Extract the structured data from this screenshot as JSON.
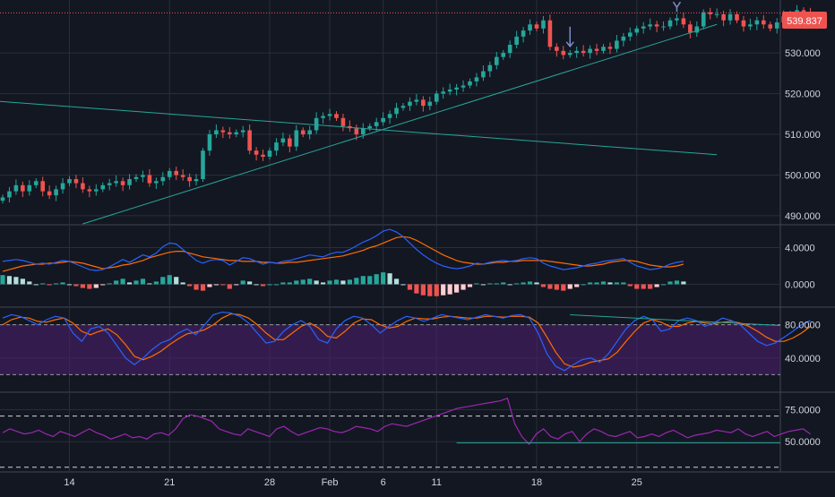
{
  "colors": {
    "background": "#131722",
    "grid": "#2a2e39",
    "up": "#26a69a",
    "down": "#ef5350",
    "axis_text": "#d1d4dc",
    "macd_line": "#2962ff",
    "signal_line": "#ff6d00",
    "stoch_k": "#2962ff",
    "stoch_d": "#ff6d00",
    "rsi_line": "#9c27b0",
    "trendline": "#26a69a",
    "price_tag": "#ef5350",
    "stoch_band": "#4a1f6b",
    "arrow": "#7e8cc4"
  },
  "chart_data": [
    {
      "type": "candlestick",
      "panel": "price",
      "last_price_label": "539.837",
      "last_price": 539.837,
      "ylim": [
        488,
        543
      ],
      "y_ticks": [
        "490.000",
        "500.000",
        "510.000",
        "520.000",
        "530.000"
      ],
      "y_tick_values": [
        490,
        500,
        510,
        520,
        530
      ],
      "closes": [
        494.5,
        496,
        497.5,
        496,
        497.5,
        498.5,
        496,
        495,
        496.5,
        498,
        499,
        498,
        496.5,
        496,
        496.5,
        497.5,
        498,
        498.5,
        497.5,
        499,
        499.5,
        500,
        498,
        498.5,
        499.5,
        501,
        500,
        499.5,
        498.5,
        499,
        506,
        510,
        511,
        510.5,
        510,
        510.5,
        511,
        506,
        505,
        504.5,
        506,
        508,
        509,
        507,
        511,
        510,
        511,
        514,
        514.5,
        515,
        514,
        512,
        511.5,
        510,
        511.5,
        512,
        513,
        514,
        515,
        516.5,
        517,
        518,
        518.5,
        517,
        518,
        520,
        520.5,
        521,
        521.5,
        522,
        523,
        524,
        525.5,
        527,
        529,
        530,
        532,
        534,
        535.5,
        537,
        536,
        538,
        531.5,
        530.5,
        529.5,
        530,
        530.5,
        530,
        531,
        530.5,
        531.5,
        531,
        533,
        534,
        535,
        536,
        536.5,
        537,
        536.5,
        536.5,
        538,
        538.5,
        537,
        535,
        536.5,
        540,
        539.5,
        539.5,
        538,
        539.5,
        538,
        536.5,
        537,
        538,
        537,
        536,
        537.5,
        539,
        539.5,
        540.5,
        540,
        539.837
      ],
      "x_tick_labels": [
        "14",
        "21",
        "28",
        "Feb",
        "6",
        "11",
        "18",
        "25"
      ],
      "x_tick_indices": [
        10,
        25,
        40,
        49,
        57,
        65,
        80,
        95
      ],
      "trendlines": [
        {
          "x1": -12,
          "y1": 519.5,
          "x2": 107,
          "y2": 505
        },
        {
          "x1": 12,
          "y1": 488,
          "x2": 107,
          "y2": 537
        }
      ],
      "arrows": [
        {
          "index": 85,
          "style": "down"
        },
        {
          "index": 101,
          "style": "y"
        }
      ]
    },
    {
      "type": "macd",
      "panel": "macd",
      "ylim": [
        -2.4,
        6.4
      ],
      "y_ticks": [
        "4.0000",
        "0.0000"
      ],
      "y_tick_values": [
        4.0,
        0.0
      ],
      "macd": [
        2.5,
        2.6,
        2.7,
        2.6,
        2.4,
        2.2,
        2.3,
        2.2,
        2.4,
        2.6,
        2.5,
        2.2,
        1.9,
        1.6,
        1.5,
        1.6,
        1.9,
        2.3,
        2.7,
        2.4,
        2.8,
        3.2,
        3.0,
        3.4,
        4.1,
        4.5,
        4.4,
        3.8,
        3.2,
        2.6,
        2.3,
        2.6,
        2.7,
        2.6,
        2.1,
        2.5,
        2.9,
        2.8,
        2.5,
        2.2,
        2.4,
        2.3,
        2.5,
        2.6,
        2.8,
        3.0,
        3.2,
        3.1,
        3.0,
        3.3,
        3.5,
        3.5,
        3.8,
        4.2,
        4.6,
        4.9,
        5.3,
        5.8,
        6.0,
        5.7,
        5.2,
        4.5,
        3.8,
        3.2,
        2.7,
        2.3,
        2.0,
        1.8,
        1.7,
        1.8,
        2.0,
        2.3,
        2.2,
        2.4,
        2.5,
        2.6,
        2.5,
        2.6,
        2.8,
        2.9,
        2.8,
        2.3,
        2.0,
        1.8,
        1.6,
        1.7,
        1.8,
        2.0,
        2.2,
        2.3,
        2.5,
        2.6,
        2.7,
        2.8,
        2.4,
        2.0,
        1.8,
        1.6,
        1.7,
        1.9,
        2.2,
        2.4,
        2.5
      ],
      "signal": [
        1.4,
        1.6,
        1.8,
        2.0,
        2.1,
        2.2,
        2.2,
        2.3,
        2.3,
        2.4,
        2.5,
        2.4,
        2.3,
        2.1,
        1.9,
        1.7,
        1.8,
        1.9,
        2.1,
        2.2,
        2.4,
        2.6,
        2.9,
        3.1,
        3.3,
        3.5,
        3.6,
        3.6,
        3.4,
        3.2,
        3.0,
        2.9,
        2.8,
        2.7,
        2.6,
        2.6,
        2.5,
        2.5,
        2.5,
        2.4,
        2.4,
        2.3,
        2.3,
        2.4,
        2.4,
        2.5,
        2.6,
        2.7,
        2.8,
        2.9,
        3.0,
        3.1,
        3.3,
        3.5,
        3.7,
        4.0,
        4.2,
        4.5,
        4.8,
        5.1,
        5.2,
        5.1,
        4.8,
        4.4,
        4.0,
        3.6,
        3.2,
        2.9,
        2.6,
        2.4,
        2.3,
        2.2,
        2.2,
        2.3,
        2.4,
        2.4,
        2.5,
        2.5,
        2.6,
        2.6,
        2.6,
        2.6,
        2.5,
        2.4,
        2.3,
        2.2,
        2.1,
        2.0,
        2.0,
        2.1,
        2.2,
        2.4,
        2.5,
        2.6,
        2.6,
        2.5,
        2.3,
        2.1,
        2.0,
        1.9,
        1.9,
        2.0,
        2.2
      ],
      "histogram": [
        1.0,
        0.9,
        0.8,
        0.6,
        0.3,
        0.0,
        0.1,
        -0.1,
        0.1,
        0.2,
        0.0,
        -0.2,
        -0.4,
        -0.5,
        -0.4,
        -0.1,
        0.1,
        0.4,
        0.6,
        0.2,
        0.4,
        0.6,
        0.1,
        0.3,
        0.8,
        1.0,
        0.8,
        0.2,
        -0.2,
        -0.6,
        -0.7,
        -0.3,
        -0.1,
        -0.1,
        -0.5,
        -0.1,
        0.4,
        0.3,
        0.0,
        -0.2,
        0.0,
        0.0,
        0.2,
        0.2,
        0.4,
        0.5,
        0.6,
        0.4,
        0.2,
        0.4,
        0.5,
        0.4,
        0.5,
        0.7,
        0.9,
        0.9,
        1.1,
        1.3,
        1.2,
        0.6,
        0.0,
        -0.6,
        -1.0,
        -1.2,
        -1.3,
        -1.3,
        -1.2,
        -1.1,
        -0.9,
        -0.6,
        -0.3,
        0.1,
        0.0,
        0.1,
        0.1,
        0.2,
        0.0,
        0.1,
        0.2,
        0.3,
        0.2,
        -0.3,
        -0.5,
        -0.6,
        -0.7,
        -0.5,
        -0.3,
        0.0,
        0.2,
        0.2,
        0.3,
        0.2,
        0.2,
        0.2,
        -0.2,
        -0.5,
        -0.5,
        -0.5,
        -0.3,
        0.0,
        0.3,
        0.4,
        0.3
      ]
    },
    {
      "type": "stochastic",
      "panel": "stoch",
      "ylim": [
        0,
        100
      ],
      "y_ticks": [
        "80.0000",
        "40.0000"
      ],
      "y_tick_values": [
        80,
        40
      ],
      "band": [
        20,
        80
      ],
      "k": [
        88,
        92,
        90,
        85,
        80,
        86,
        90,
        88,
        70,
        60,
        75,
        78,
        70,
        55,
        40,
        32,
        40,
        50,
        58,
        62,
        70,
        75,
        68,
        80,
        92,
        95,
        94,
        90,
        82,
        70,
        58,
        60,
        72,
        80,
        85,
        78,
        62,
        58,
        75,
        85,
        90,
        88,
        80,
        70,
        78,
        85,
        90,
        88,
        84,
        88,
        92,
        90,
        88,
        86,
        89,
        92,
        90,
        88,
        91,
        92,
        88,
        70,
        45,
        30,
        25,
        32,
        38,
        40,
        35,
        45,
        60,
        75,
        85,
        90,
        86,
        72,
        75,
        85,
        88,
        85,
        78,
        82,
        88,
        85,
        80,
        70,
        60,
        55,
        58,
        65,
        72,
        80,
        85
      ],
      "d": [
        80,
        86,
        89,
        88,
        84,
        83,
        86,
        88,
        82,
        72,
        68,
        72,
        75,
        68,
        56,
        42,
        38,
        42,
        48,
        56,
        63,
        69,
        71,
        74,
        80,
        88,
        93,
        92,
        88,
        80,
        70,
        62,
        62,
        70,
        78,
        82,
        76,
        66,
        64,
        72,
        82,
        87,
        86,
        80,
        76,
        78,
        84,
        88,
        87,
        87,
        89,
        90,
        89,
        88,
        88,
        90,
        90,
        89,
        90,
        90,
        89,
        82,
        65,
        47,
        33,
        29,
        31,
        35,
        37,
        39,
        47,
        60,
        72,
        82,
        86,
        83,
        78,
        78,
        82,
        84,
        82,
        81,
        83,
        84,
        82,
        78,
        72,
        65,
        60,
        60,
        64,
        70,
        78
      ]
    },
    {
      "type": "line",
      "panel": "rsi",
      "ylim": [
        27,
        88
      ],
      "y_ticks": [
        "75.0000",
        "50.0000"
      ],
      "y_tick_values": [
        75,
        50
      ],
      "levels": [
        70,
        30,
        50
      ],
      "values": [
        57,
        60,
        58,
        56,
        57,
        59,
        56,
        54,
        58,
        56,
        54,
        57,
        60,
        57,
        55,
        52,
        54,
        56,
        53,
        54,
        52,
        56,
        57,
        55,
        60,
        68,
        71,
        70,
        68,
        66,
        60,
        58,
        56,
        55,
        60,
        58,
        56,
        54,
        60,
        62,
        58,
        55,
        57,
        59,
        61,
        60,
        58,
        57,
        59,
        62,
        61,
        60,
        58,
        62,
        64,
        63,
        62,
        64,
        66,
        68,
        70,
        72,
        74,
        76,
        77,
        78,
        79,
        80,
        81,
        82,
        84,
        64,
        54,
        48,
        56,
        60,
        54,
        52,
        56,
        58,
        50,
        56,
        60,
        58,
        55,
        54,
        56,
        58,
        53,
        54,
        56,
        54,
        57,
        59,
        56,
        53,
        55,
        56,
        57,
        59,
        58,
        57,
        60,
        56,
        54,
        56,
        58,
        54,
        56,
        58,
        59,
        60,
        56
      ]
    }
  ]
}
